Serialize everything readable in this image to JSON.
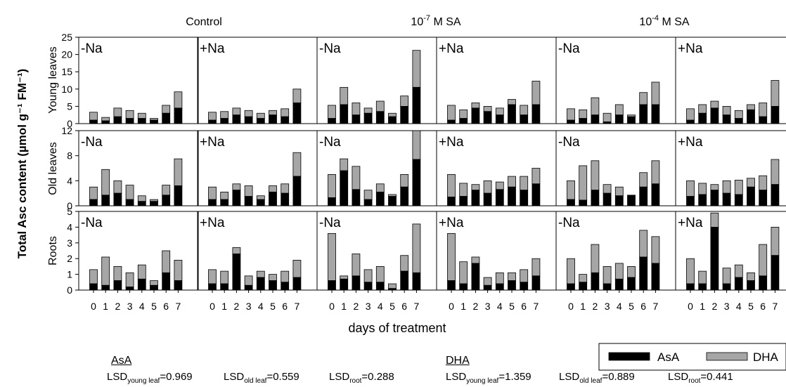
{
  "chart_data": {
    "type": "bar",
    "stacked": true,
    "ylabel": "Total Asc content (µmol g⁻¹ FM⁻¹)",
    "xlabel": "days of treatment",
    "x": [
      0,
      1,
      2,
      3,
      4,
      5,
      6,
      7
    ],
    "column_titles": [
      {
        "base": "Control",
        "sup": "",
        "rest": ""
      },
      {
        "base": "10",
        "sup": "-7",
        "rest": " M SA"
      },
      {
        "base": "10",
        "sup": "-4",
        "rest": " M SA"
      }
    ],
    "row_labels": [
      "Young leaves",
      "Old leaves",
      "Roots"
    ],
    "panel_labels": [
      "-Na",
      "+Na",
      "-Na",
      "+Na",
      "-Na",
      "+Na"
    ],
    "row_axes": [
      {
        "ylim": [
          0,
          25
        ],
        "ticks": [
          0,
          5,
          10,
          15,
          20,
          25
        ]
      },
      {
        "ylim": [
          0,
          12
        ],
        "ticks": [
          0,
          4,
          8,
          12
        ]
      },
      {
        "ylim": [
          0,
          5
        ],
        "ticks": [
          0,
          1,
          2,
          3,
          4,
          5
        ]
      }
    ],
    "legend": {
      "position": "bottom-right",
      "items": [
        {
          "name": "AsA",
          "color": "#000000"
        },
        {
          "name": "DHA",
          "color": "#a6a6a6"
        }
      ]
    },
    "colors": {
      "AsA": "#000000",
      "DHA": "#a6a6a6"
    },
    "panels": [
      [
        {
          "asa": [
            1.0,
            0.8,
            2.0,
            1.5,
            1.5,
            1.0,
            3.0,
            4.5
          ],
          "total": [
            3.3,
            1.8,
            4.5,
            3.8,
            3.0,
            1.5,
            5.3,
            9.2
          ]
        },
        {
          "asa": [
            1.0,
            1.5,
            2.5,
            2.0,
            1.5,
            2.5,
            2.0,
            6.0
          ],
          "total": [
            3.3,
            3.5,
            4.5,
            3.8,
            3.0,
            3.8,
            4.3,
            10.0
          ]
        },
        {
          "asa": [
            1.5,
            5.5,
            2.5,
            3.0,
            3.5,
            2.0,
            5.0,
            10.5
          ],
          "total": [
            5.3,
            10.5,
            6.0,
            4.5,
            6.5,
            3.0,
            8.0,
            21.2
          ]
        },
        {
          "asa": [
            1.0,
            1.5,
            4.5,
            3.5,
            2.5,
            5.5,
            2.5,
            5.5
          ],
          "total": [
            5.3,
            4.0,
            6.0,
            5.0,
            4.5,
            7.0,
            5.3,
            12.3
          ]
        },
        {
          "asa": [
            1.0,
            1.5,
            2.5,
            0.5,
            2.5,
            2.0,
            5.5,
            5.5
          ],
          "total": [
            4.3,
            4.0,
            7.5,
            3.0,
            5.5,
            2.5,
            9.0,
            12.0
          ]
        },
        {
          "asa": [
            1.0,
            3.0,
            4.5,
            2.5,
            1.5,
            4.0,
            2.0,
            5.0
          ],
          "total": [
            4.3,
            5.5,
            6.5,
            5.0,
            3.8,
            5.5,
            6.0,
            12.5
          ]
        }
      ],
      [
        {
          "asa": [
            1.0,
            1.7,
            2.0,
            1.0,
            0.7,
            0.7,
            1.7,
            3.2
          ],
          "total": [
            3.0,
            5.8,
            4.0,
            3.3,
            1.6,
            1.0,
            3.3,
            7.5
          ]
        },
        {
          "asa": [
            1.0,
            1.0,
            2.5,
            1.5,
            1.0,
            2.2,
            2.0,
            4.7
          ],
          "total": [
            3.0,
            2.2,
            3.5,
            3.2,
            1.6,
            3.2,
            3.5,
            8.5
          ]
        },
        {
          "asa": [
            1.3,
            5.6,
            2.6,
            1.0,
            2.2,
            1.5,
            3.0,
            7.4
          ],
          "total": [
            5.0,
            7.5,
            6.3,
            2.5,
            3.5,
            1.8,
            5.0,
            12.0
          ]
        },
        {
          "asa": [
            1.4,
            1.5,
            2.5,
            2.0,
            2.6,
            3.0,
            2.5,
            3.5
          ],
          "total": [
            5.0,
            3.6,
            3.4,
            4.0,
            3.8,
            4.7,
            4.7,
            6.0
          ]
        },
        {
          "asa": [
            1.0,
            0.9,
            2.5,
            2.0,
            1.6,
            1.7,
            3.0,
            3.5
          ],
          "total": [
            4.0,
            6.4,
            7.2,
            3.4,
            3.0,
            1.7,
            5.3,
            7.2
          ]
        },
        {
          "asa": [
            1.5,
            1.8,
            2.5,
            2.0,
            1.8,
            3.0,
            2.5,
            3.4
          ],
          "total": [
            4.0,
            3.6,
            3.4,
            4.0,
            4.1,
            4.4,
            4.8,
            7.4
          ]
        }
      ],
      [
        {
          "asa": [
            0.4,
            0.3,
            0.6,
            0.2,
            0.7,
            0.3,
            1.1,
            0.6
          ],
          "total": [
            1.3,
            2.1,
            1.5,
            1.1,
            1.6,
            0.6,
            2.5,
            1.9
          ]
        },
        {
          "asa": [
            0.4,
            0.4,
            2.3,
            0.3,
            0.8,
            0.6,
            0.5,
            0.8
          ],
          "total": [
            1.3,
            1.2,
            2.7,
            0.9,
            1.2,
            1.0,
            1.2,
            1.9
          ]
        },
        {
          "asa": [
            0.6,
            0.7,
            0.9,
            0.5,
            0.5,
            0.1,
            1.2,
            1.1
          ],
          "total": [
            3.6,
            0.9,
            2.3,
            1.3,
            1.5,
            0.4,
            2.2,
            4.2
          ]
        },
        {
          "asa": [
            0.6,
            0.4,
            1.7,
            0.3,
            0.4,
            0.6,
            0.5,
            0.9
          ],
          "total": [
            3.6,
            1.8,
            2.1,
            0.8,
            1.1,
            1.1,
            1.3,
            2.0
          ]
        },
        {
          "asa": [
            0.4,
            0.5,
            1.1,
            0.4,
            0.7,
            0.8,
            2.1,
            1.7
          ],
          "total": [
            2.0,
            1.0,
            2.9,
            1.5,
            1.7,
            1.5,
            3.8,
            3.4
          ]
        },
        {
          "asa": [
            0.4,
            0.4,
            4.0,
            0.4,
            0.8,
            0.6,
            0.9,
            2.2
          ],
          "total": [
            2.0,
            1.2,
            4.9,
            1.4,
            1.6,
            1.1,
            2.9,
            4.0
          ]
        }
      ]
    ]
  },
  "lsd": {
    "asa_head": "AsA",
    "dha_head": "DHA",
    "asa": [
      {
        "pre": "LSD",
        "sub": "young leaf",
        "val": "=0.969"
      },
      {
        "pre": "LSD",
        "sub": "old leaf",
        "val": "=0.559"
      },
      {
        "pre": "LSD",
        "sub": "root",
        "val": "=0.288"
      }
    ],
    "dha": [
      {
        "pre": "LSD",
        "sub": "young leaf",
        "val": "=1.359"
      },
      {
        "pre": "LSD",
        "sub": "old leaf",
        "val": "=0.889"
      },
      {
        "pre": "LSD",
        "sub": "root",
        "val": "=0.441"
      }
    ]
  }
}
